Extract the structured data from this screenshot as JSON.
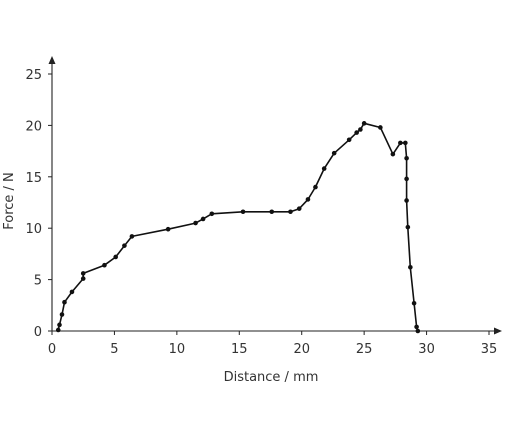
{
  "chart_data": {
    "type": "line",
    "title": "",
    "xlabel": "Distance / mm",
    "ylabel": "Force / N",
    "xlim": [
      0,
      35
    ],
    "ylim": [
      0,
      25
    ],
    "xticks": [
      0,
      5,
      10,
      15,
      20,
      25,
      30,
      35
    ],
    "yticks": [
      0,
      5,
      10,
      15,
      20,
      25
    ],
    "grid": false,
    "series": [
      {
        "x": [
          0.5,
          0.6,
          0.8,
          1.0,
          1.6,
          2.5,
          2.5,
          4.2,
          5.1,
          5.8,
          6.4,
          9.3,
          11.5,
          12.1,
          12.8,
          15.3,
          17.6,
          19.1,
          19.8,
          20.5,
          21.1,
          21.8,
          22.6,
          23.8,
          24.4,
          24.7,
          25.0,
          26.3,
          27.3,
          27.9,
          28.3,
          28.4,
          28.4,
          28.4,
          28.5,
          28.7,
          29.0,
          29.2,
          29.3
        ],
        "y": [
          0.1,
          0.6,
          1.6,
          2.8,
          3.8,
          5.1,
          5.6,
          6.4,
          7.2,
          8.3,
          9.2,
          9.9,
          10.5,
          10.9,
          11.4,
          11.6,
          11.6,
          11.6,
          11.9,
          12.8,
          14.0,
          15.8,
          17.3,
          18.6,
          19.3,
          19.6,
          20.2,
          19.8,
          17.2,
          18.3,
          18.3,
          16.8,
          14.8,
          12.7,
          10.1,
          6.2,
          2.7,
          0.4,
          0.0
        ]
      }
    ]
  }
}
